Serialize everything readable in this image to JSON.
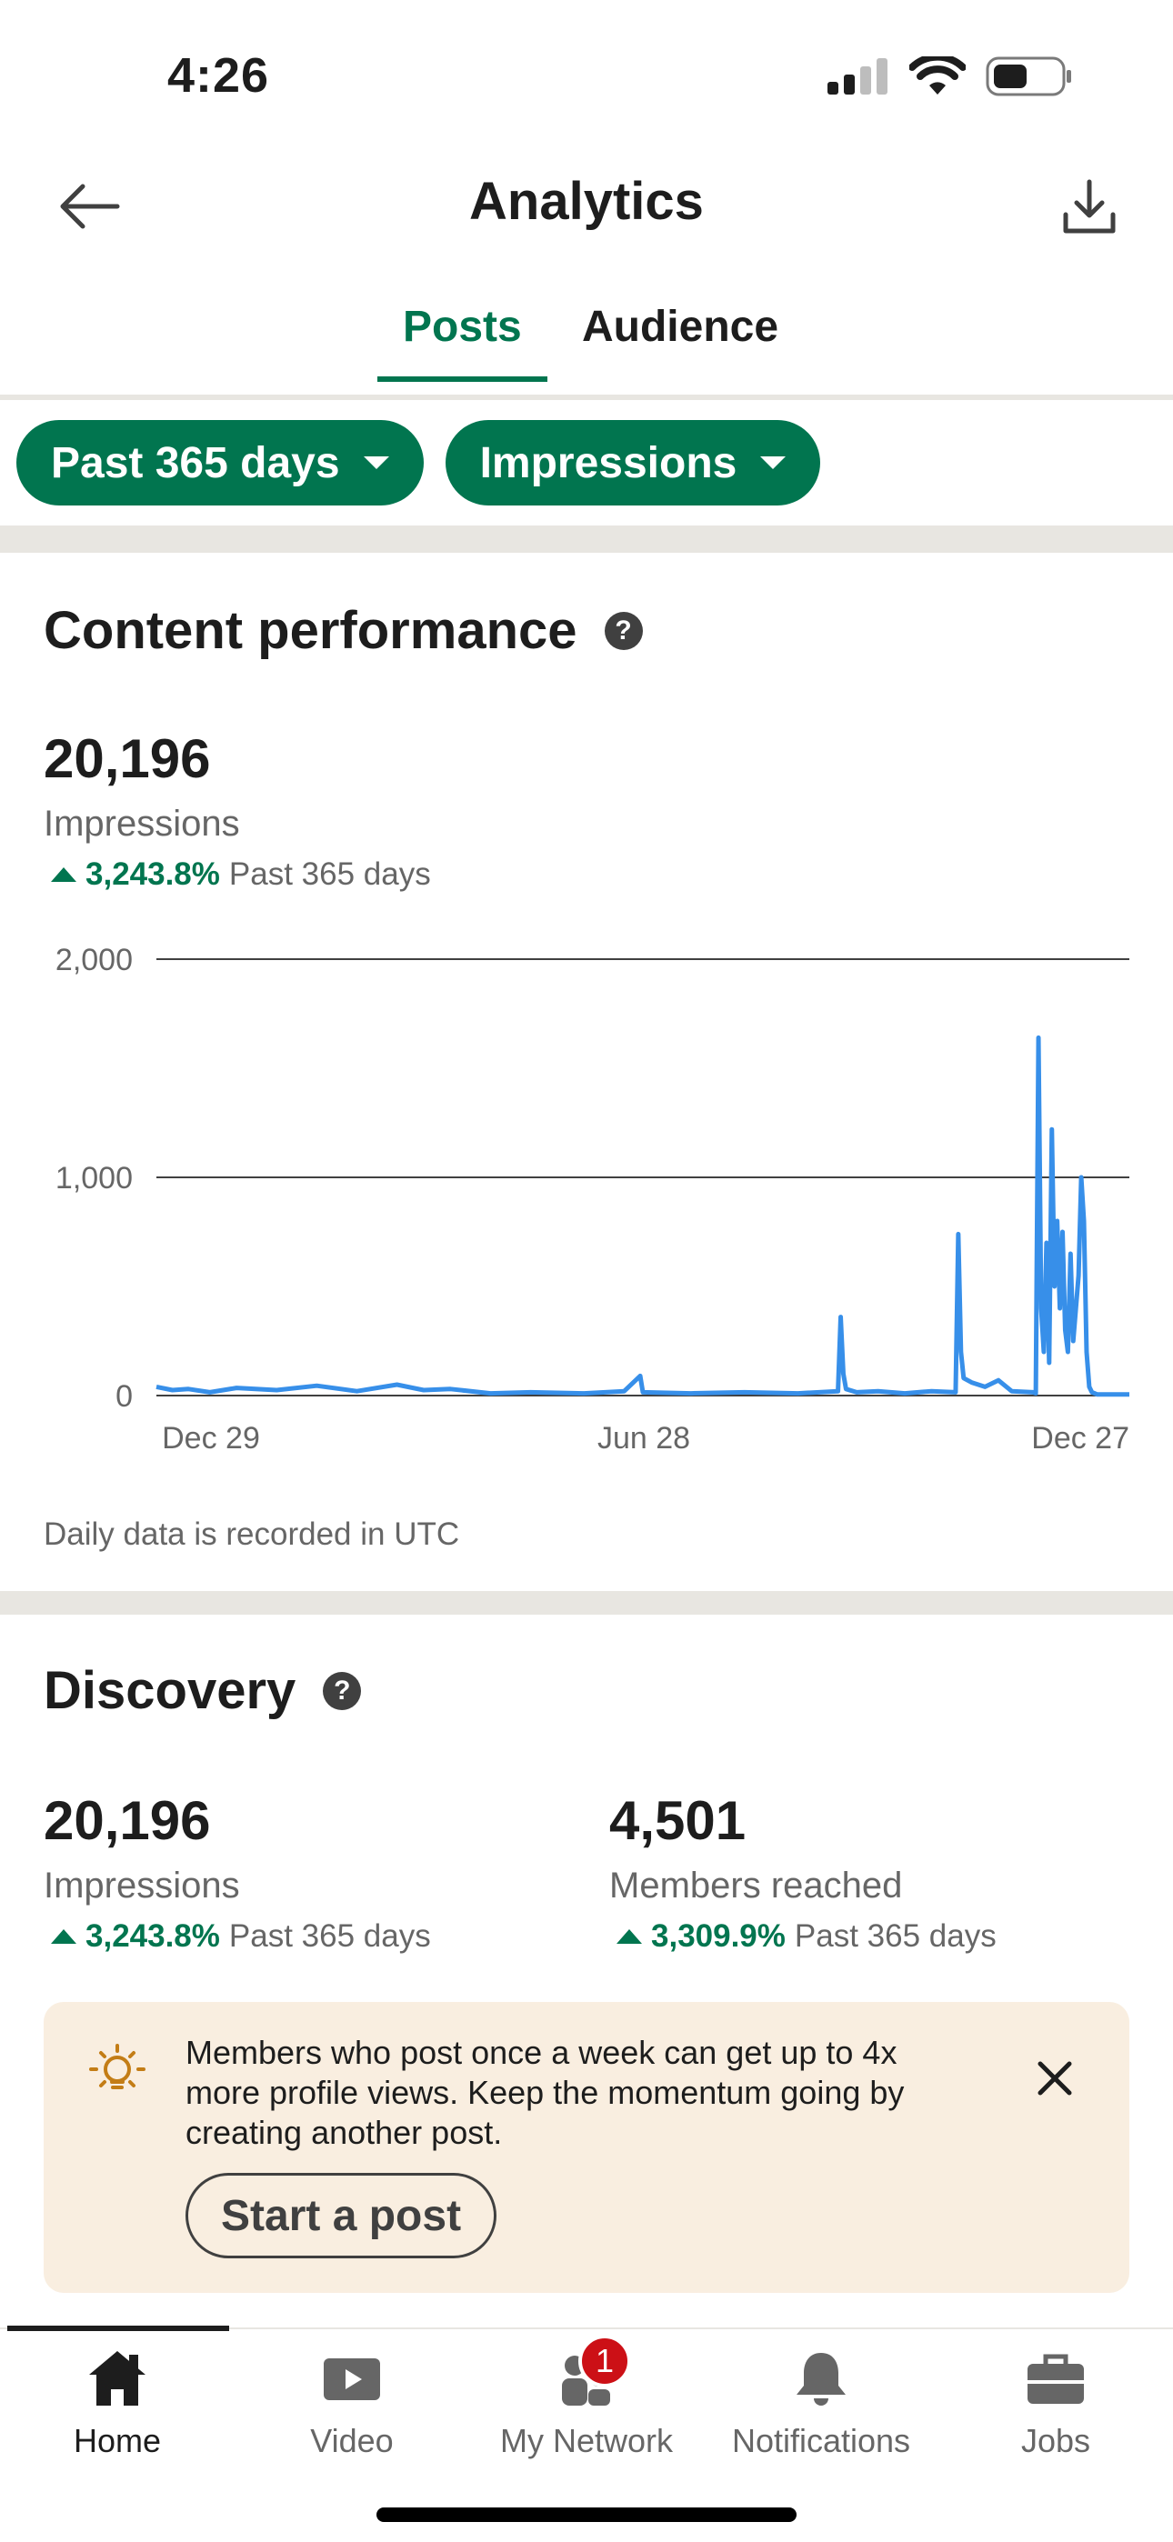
{
  "status_bar": {
    "time": "4:26"
  },
  "header": {
    "title": "Analytics"
  },
  "tabs": [
    {
      "label": "Posts",
      "active": true
    },
    {
      "label": "Audience",
      "active": false
    }
  ],
  "filters": [
    {
      "label": "Past 365 days"
    },
    {
      "label": "Impressions"
    }
  ],
  "content_performance": {
    "title": "Content performance",
    "value": "20,196",
    "label": "Impressions",
    "change_pct": "3,243.8%",
    "change_period": "Past 365 days",
    "note": "Daily data is recorded in UTC"
  },
  "chart_data": {
    "type": "line",
    "x_tick_labels": [
      "Dec 29",
      "Jun 28",
      "Dec 27"
    ],
    "y_tick_labels": [
      "0",
      "1,000",
      "2,000"
    ],
    "ylim": [
      0,
      2000
    ],
    "grid": true,
    "series_color": "#378fe9",
    "x": [
      0,
      6,
      12,
      20,
      30,
      45,
      60,
      75,
      90,
      100,
      110,
      125,
      140,
      160,
      175,
      181,
      182,
      200,
      220,
      240,
      255,
      256,
      257,
      258,
      262,
      270,
      280,
      290,
      299,
      300,
      301,
      302,
      305,
      310,
      315,
      320,
      328,
      329,
      330,
      331,
      332,
      333,
      334,
      335,
      336,
      337,
      338,
      339,
      340,
      341,
      342,
      343,
      344,
      345,
      346,
      347,
      348,
      349,
      350,
      351,
      352,
      353,
      354,
      355,
      356,
      357,
      358,
      359,
      360,
      361,
      362,
      363,
      364
    ],
    "values": [
      40,
      25,
      30,
      15,
      35,
      25,
      45,
      20,
      50,
      25,
      30,
      10,
      15,
      10,
      20,
      90,
      15,
      10,
      15,
      10,
      20,
      360,
      100,
      30,
      15,
      20,
      10,
      20,
      15,
      740,
      200,
      80,
      60,
      40,
      70,
      20,
      15,
      10,
      1640,
      400,
      200,
      700,
      150,
      1220,
      500,
      800,
      400,
      750,
      300,
      200,
      650,
      250,
      400,
      550,
      1000,
      800,
      200,
      40,
      15,
      10,
      5,
      5,
      5,
      5,
      5,
      5,
      5,
      5,
      5,
      5,
      5,
      5,
      5
    ]
  },
  "discovery": {
    "title": "Discovery",
    "metrics": [
      {
        "value": "20,196",
        "label": "Impressions",
        "change_pct": "3,243.8%",
        "change_period": "Past 365 days"
      },
      {
        "value": "4,501",
        "label": "Members reached",
        "change_pct": "3,309.9%",
        "change_period": "Past 365 days"
      }
    ]
  },
  "tip": {
    "text": "Members who post once a week can get up to 4x more profile views. Keep the momentum going by creating another post.",
    "button": "Start a post"
  },
  "bottom_nav": [
    {
      "label": "Home",
      "icon": "home-icon",
      "active": true
    },
    {
      "label": "Video",
      "icon": "video-icon",
      "active": false
    },
    {
      "label": "My Network",
      "icon": "my-network-icon",
      "active": false,
      "badge": "1"
    },
    {
      "label": "Notifications",
      "icon": "bell-icon",
      "active": false
    },
    {
      "label": "Jobs",
      "icon": "briefcase-icon",
      "active": false
    }
  ],
  "colors": {
    "accent": "#01754f",
    "chart_line": "#378fe9",
    "badge": "#cc1016",
    "tip_bg": "#f9eee0"
  }
}
